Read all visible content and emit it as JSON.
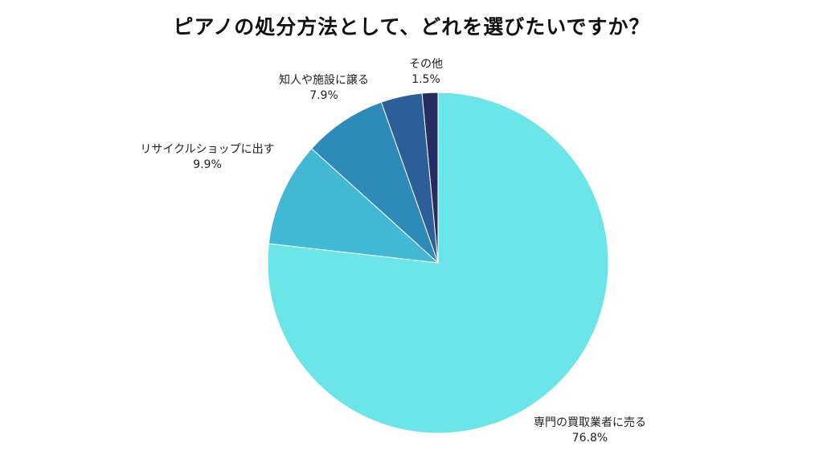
{
  "chart_data": {
    "type": "pie",
    "title": "ピアノの処分方法として、どれを選びたいですか？",
    "slices": [
      {
        "label": "専門の買取業者に売る",
        "value": 76.8,
        "value_label": "76.8%",
        "color": "#6ce5e8"
      },
      {
        "label": "リサイクルショップに出す",
        "value": 9.9,
        "value_label": "9.9%",
        "color": "#43b8d5"
      },
      {
        "label": "知人や施設に譲る",
        "value": 7.9,
        "value_label": "7.9%",
        "color": "#2e8ab9"
      },
      {
        "label": "",
        "value": 3.9,
        "value_label": "",
        "color": "#2c5e99"
      },
      {
        "label": "その他",
        "value": 1.5,
        "value_label": "1.5%",
        "color": "#262d62"
      }
    ],
    "start_angle": "12 o'clock",
    "direction": "clockwise",
    "legend": "none"
  }
}
